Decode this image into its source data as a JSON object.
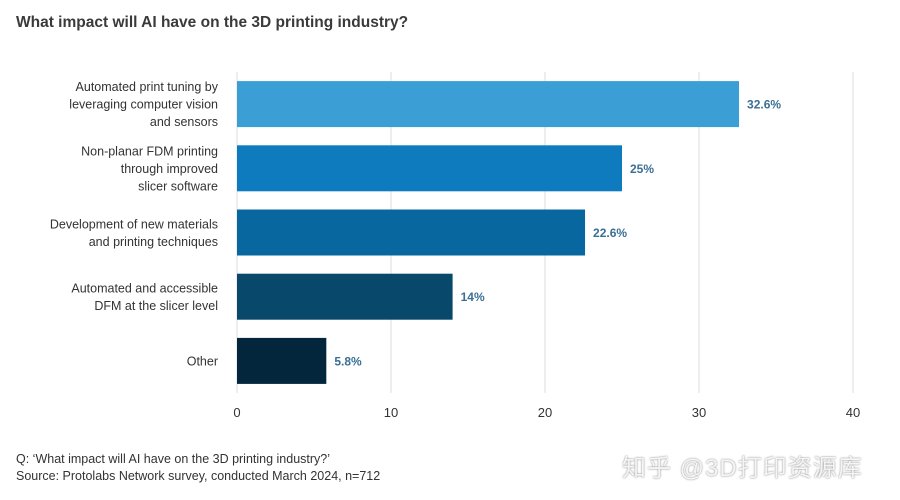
{
  "header": {
    "title": "What impact will AI have on the 3D printing industry?"
  },
  "chart_data": {
    "type": "bar",
    "orientation": "horizontal",
    "categories": [
      [
        "Automated print tuning by",
        "leveraging computer vision",
        "and sensors"
      ],
      [
        "Non-planar FDM printing",
        "through improved",
        "slicer software"
      ],
      [
        "Development of new materials",
        "and printing techniques"
      ],
      [
        "Automated and accessible",
        "DFM at the slicer level"
      ],
      [
        "Other"
      ]
    ],
    "values": [
      32.6,
      25,
      22.6,
      14,
      5.8
    ],
    "value_labels": [
      "32.6%",
      "25%",
      "22.6%",
      "14%",
      "5.8%"
    ],
    "colors": [
      "#3b9fd6",
      "#0d7bbd",
      "#09679f",
      "#08486a",
      "#04263c"
    ],
    "xlim": [
      0,
      40
    ],
    "xticks": [
      0,
      10,
      20,
      30,
      40
    ],
    "grid": true
  },
  "footer": {
    "question": "Q: ‘What impact will AI have on the 3D printing industry?’",
    "source": "Source: Protolabs Network survey, conducted March 2024, n=712"
  },
  "watermark": "知乎 @3D打印资源库"
}
